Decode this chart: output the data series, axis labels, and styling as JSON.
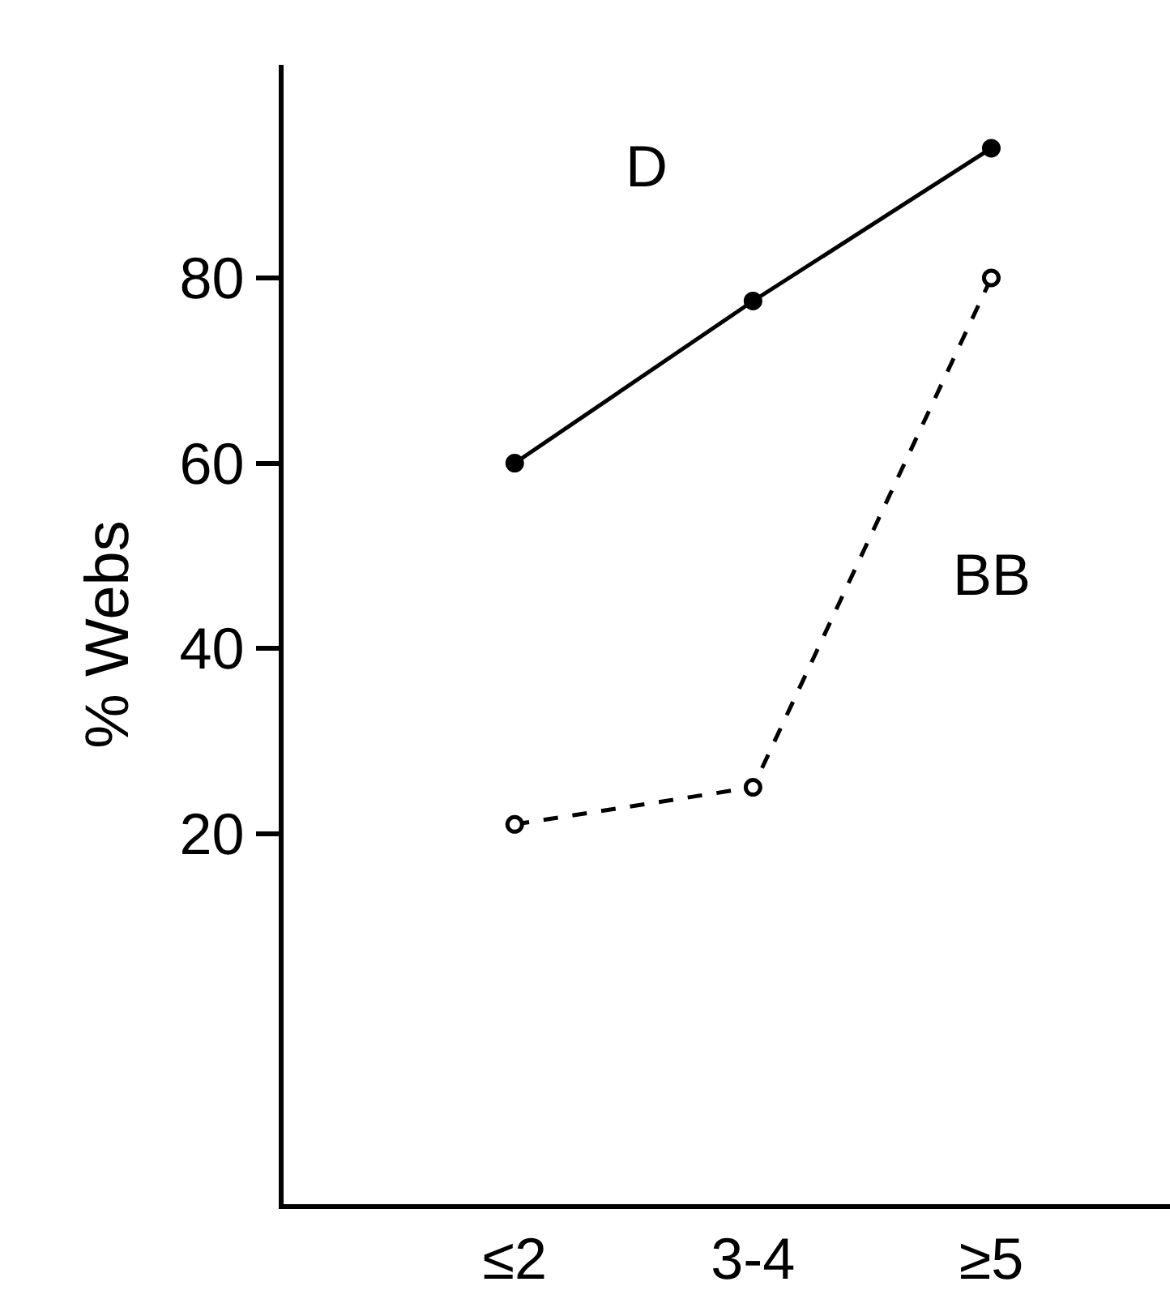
{
  "chart_data": {
    "type": "line",
    "ylabel": "% Webs",
    "categories": [
      "≤2",
      "3-4",
      "≥5"
    ],
    "series": [
      {
        "name": "D",
        "color": "#000000",
        "values": [
          60,
          77.5,
          94
        ],
        "line_style": "solid",
        "marker": "circle"
      },
      {
        "name": "BB",
        "color": "#000000",
        "values": [
          21,
          25,
          80
        ],
        "line_style": "dashed",
        "marker": "circle"
      }
    ],
    "ylim": [
      -20,
      103
    ],
    "yticks": [
      20,
      40,
      60,
      80
    ],
    "grid": false,
    "legend": false
  }
}
